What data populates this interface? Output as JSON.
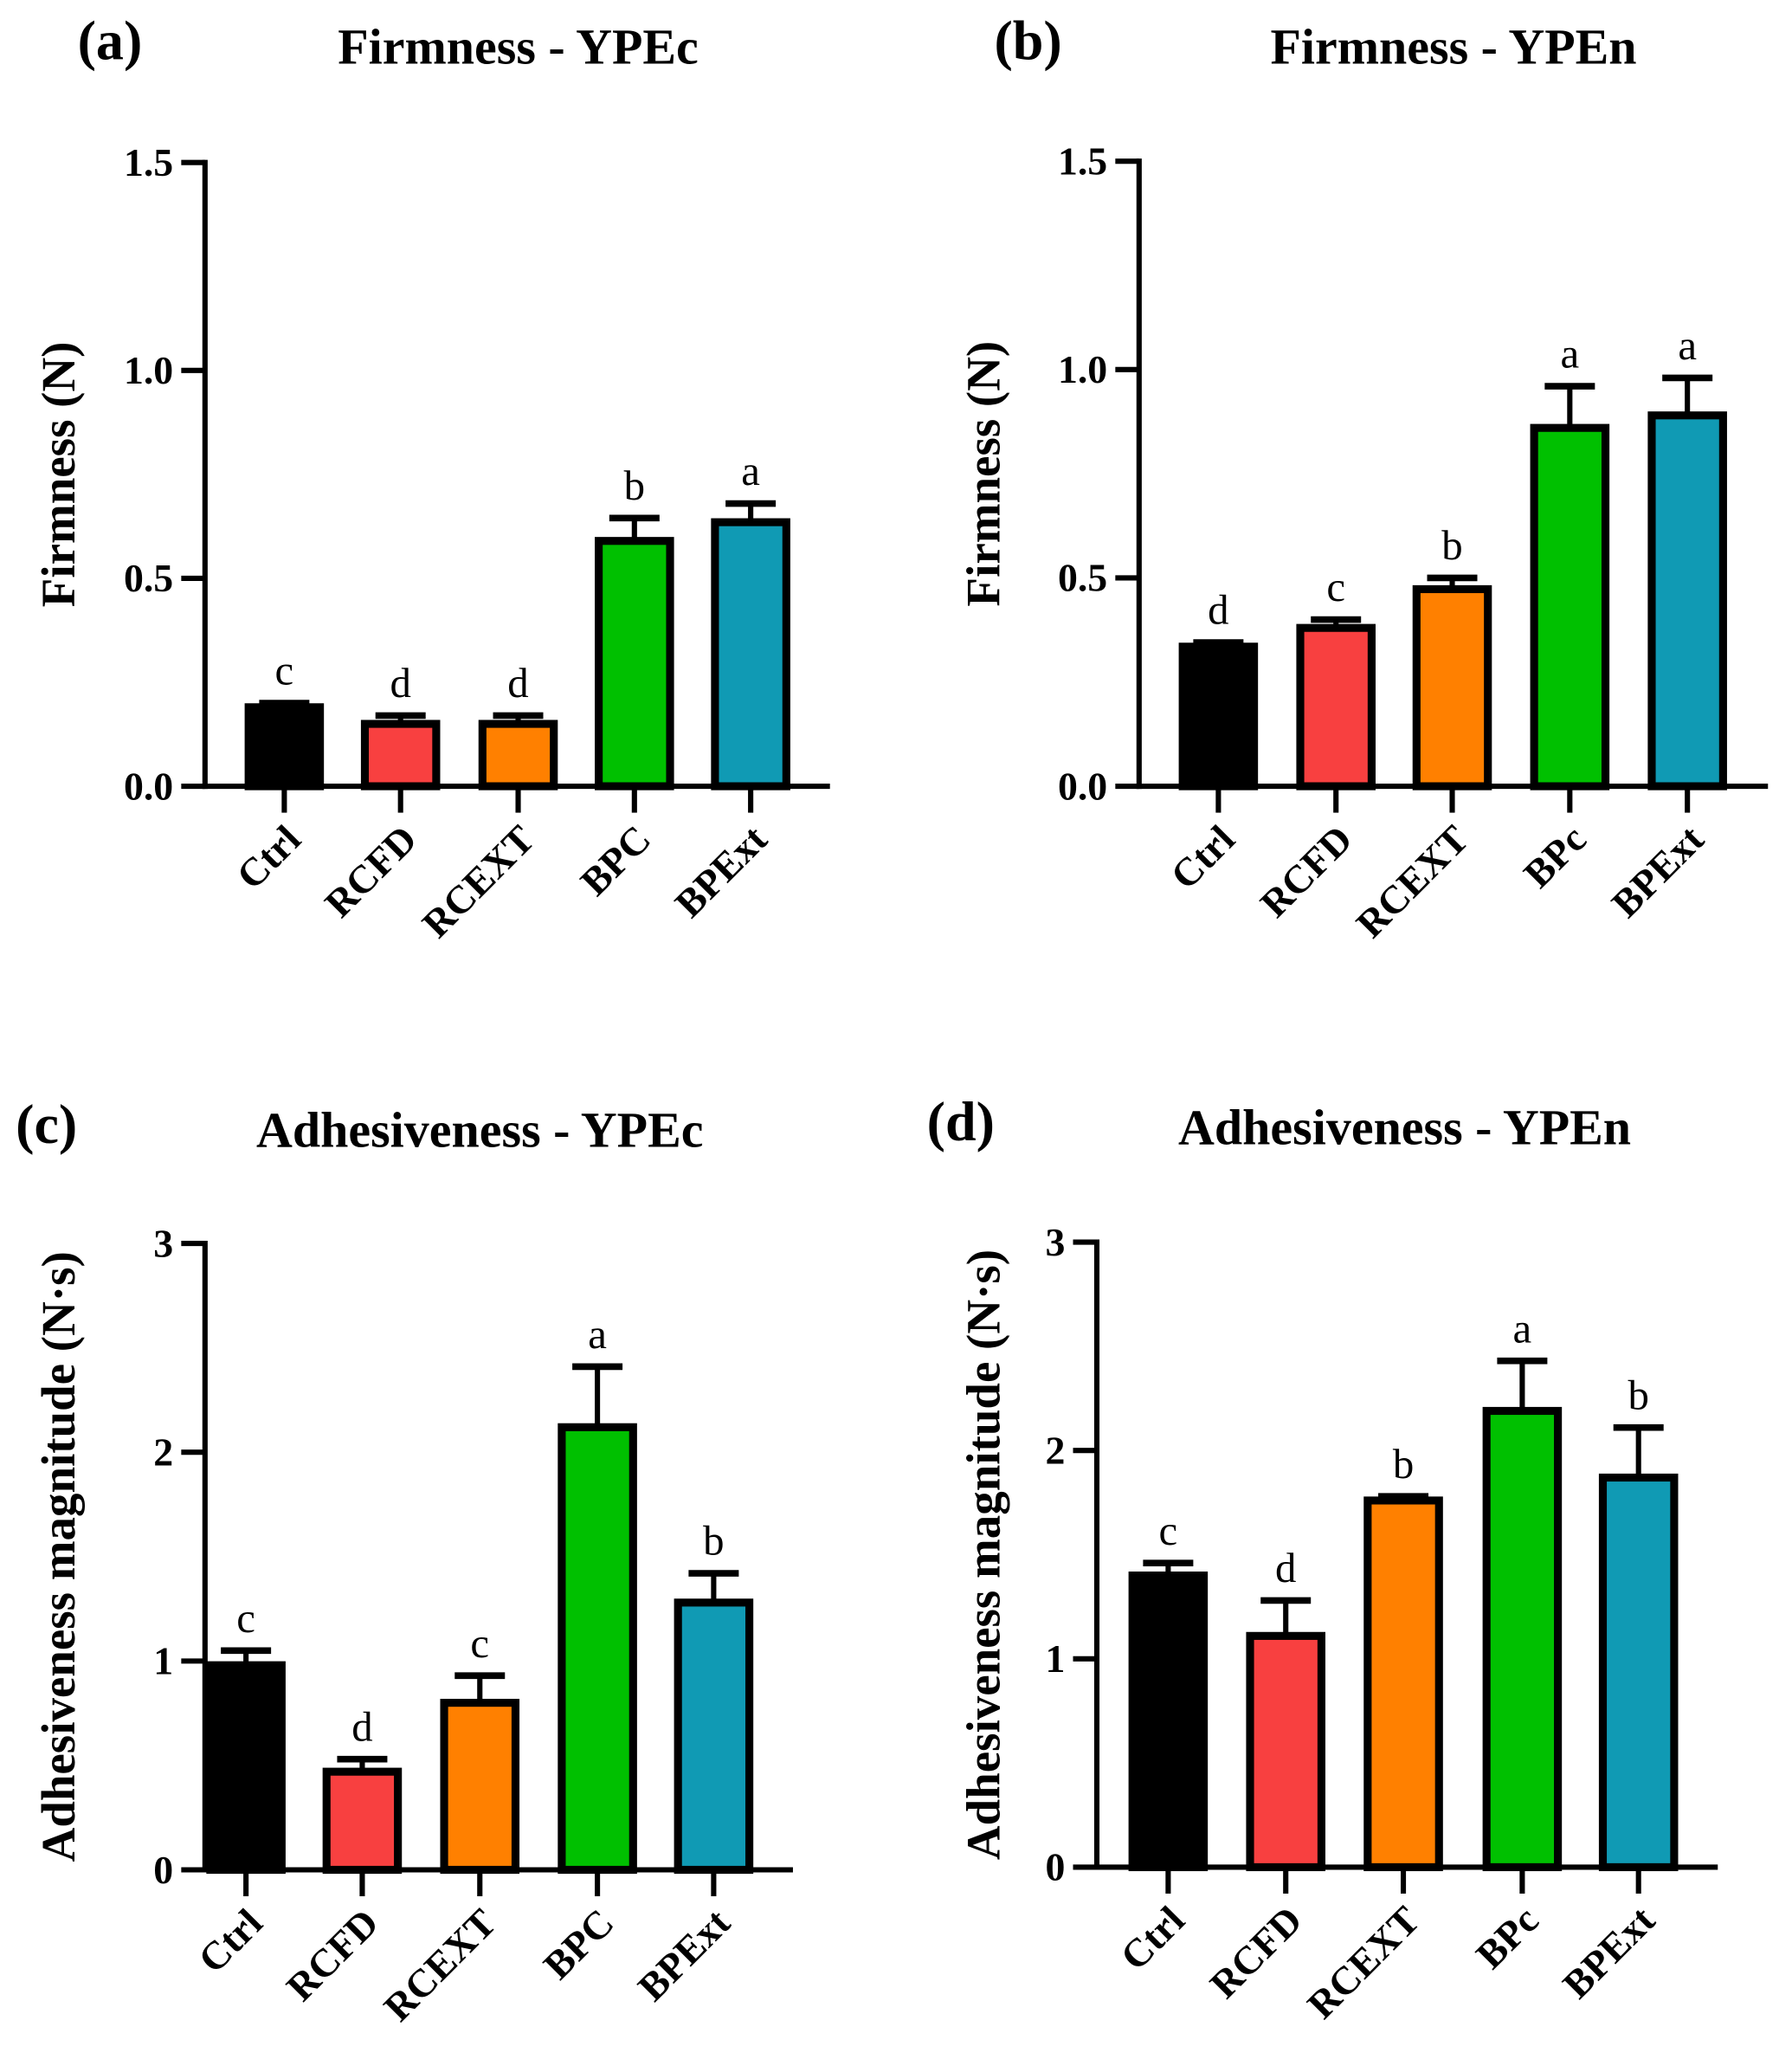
{
  "colors": {
    "Ctrl": "#000000",
    "RCFD": "#f84040",
    "RCEXT": "#ff8000",
    "BPC": "#00c000",
    "BPExt": "#109ab4"
  },
  "chart_data": [
    {
      "type": "bar",
      "panel_label": "(a)",
      "title": "Firmness - YPEc",
      "ylabel": "Firmness (N)",
      "xlabel": "",
      "ylim": [
        0,
        1.5
      ],
      "yticks": [
        0,
        0.5,
        1.0,
        1.5
      ],
      "ytick_labels": [
        "0.0",
        "0.5",
        "1.0",
        "1.5"
      ],
      "categories": [
        "Ctrl",
        "RCFD",
        "RCEXT",
        "BPC",
        "BPExt"
      ],
      "values": [
        0.19,
        0.15,
        0.15,
        0.59,
        0.635
      ],
      "error_upper": [
        0.2,
        0.17,
        0.17,
        0.645,
        0.68
      ],
      "significance": [
        "c",
        "d",
        "d",
        "b",
        "a"
      ]
    },
    {
      "type": "bar",
      "panel_label": "(b)",
      "title": "Firmness - YPEn",
      "ylabel": "Firmness (N)",
      "xlabel": "",
      "ylim": [
        0,
        1.5
      ],
      "yticks": [
        0,
        0.5,
        1.0,
        1.5
      ],
      "ytick_labels": [
        "0.0",
        "0.5",
        "1.0",
        "1.5"
      ],
      "categories": [
        "Ctrl",
        "RCFD",
        "RCEXT",
        "BPc",
        "BPExt"
      ],
      "values": [
        0.335,
        0.38,
        0.473,
        0.86,
        0.89
      ],
      "error_upper": [
        0.345,
        0.4,
        0.5,
        0.96,
        0.98
      ],
      "significance": [
        "d",
        "c",
        "b",
        "a",
        "a"
      ]
    },
    {
      "type": "bar",
      "panel_label": "(c)",
      "title": "Adhesiveness - YPEc",
      "ylabel": "Adhesiveness magnitude (N·s)",
      "xlabel": "",
      "ylim": [
        0,
        3
      ],
      "yticks": [
        0,
        1,
        2,
        3
      ],
      "ytick_labels": [
        "0",
        "1",
        "2",
        "3"
      ],
      "categories": [
        "Ctrl",
        "RCFD",
        "RCEXT",
        "BPC",
        "BPExt"
      ],
      "values": [
        0.98,
        0.47,
        0.8,
        2.12,
        1.28
      ],
      "error_upper": [
        1.05,
        0.53,
        0.93,
        2.41,
        1.42
      ],
      "significance": [
        "c",
        "d",
        "c",
        "a",
        "b"
      ]
    },
    {
      "type": "bar",
      "panel_label": "(d)",
      "title": "Adhesiveness - YPEn",
      "ylabel": "Adhesiveness magnitude (N·s)",
      "xlabel": "",
      "ylim": [
        0,
        3
      ],
      "yticks": [
        0,
        1,
        2,
        3
      ],
      "ytick_labels": [
        "0",
        "1",
        "2",
        "3"
      ],
      "categories": [
        "Ctrl",
        "RCFD",
        "RCEXT",
        "BPc",
        "BPExt"
      ],
      "values": [
        1.4,
        1.11,
        1.76,
        2.19,
        1.87
      ],
      "error_upper": [
        1.46,
        1.28,
        1.78,
        2.43,
        2.11
      ],
      "significance": [
        "c",
        "d",
        "b",
        "a",
        "b"
      ]
    }
  ]
}
